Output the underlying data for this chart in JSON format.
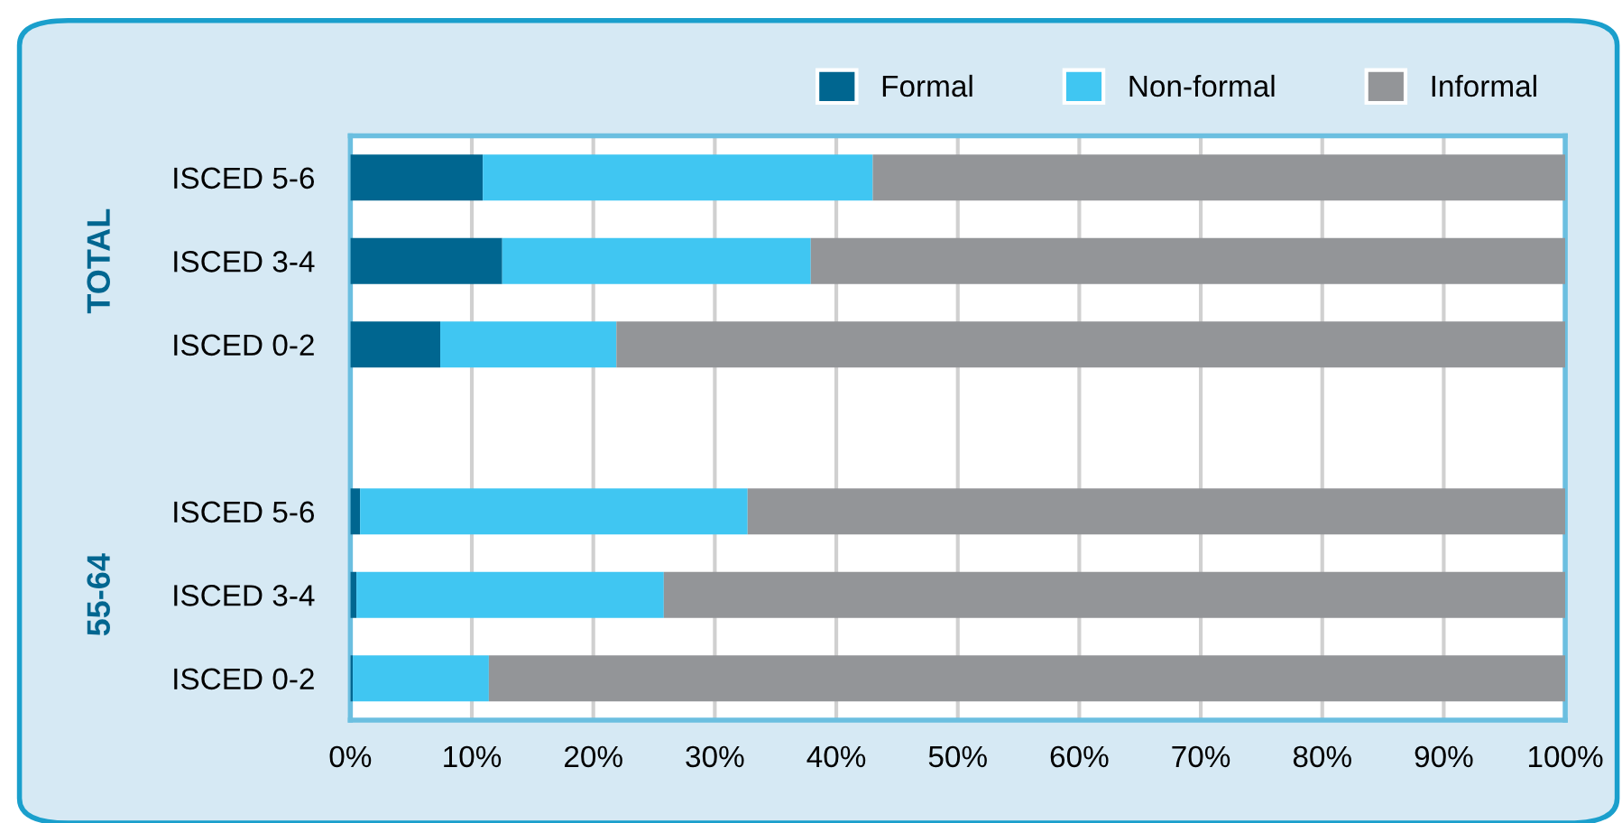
{
  "chart_data": {
    "type": "bar",
    "orientation": "horizontal",
    "stacked": true,
    "categories": [
      "ISCED 5-6",
      "ISCED 3-4",
      "ISCED 0-2",
      null,
      "ISCED 5-6",
      "ISCED 3-4",
      "ISCED 0-2"
    ],
    "series": [
      {
        "name": "Formal",
        "color": "#006690",
        "values": [
          10.9,
          12.5,
          7.4,
          null,
          0.8,
          0.5,
          0.2
        ]
      },
      {
        "name": "Non-formal",
        "color": "#40c6f2",
        "values": [
          32.1,
          25.4,
          14.5,
          null,
          31.9,
          25.3,
          11.2
        ]
      },
      {
        "name": "Informal",
        "color": "#939598",
        "values": [
          57.0,
          62.1,
          78.1,
          null,
          67.3,
          74.2,
          88.6
        ]
      }
    ],
    "annotations": [
      "TOTAL",
      "55-64"
    ],
    "xlim": [
      0,
      100
    ],
    "xticks": [
      {
        "value": 0,
        "label": "0%"
      },
      {
        "value": 10,
        "label": "10%"
      },
      {
        "value": 20,
        "label": "20%"
      },
      {
        "value": 30,
        "label": "30%"
      },
      {
        "value": 40,
        "label": "40%"
      },
      {
        "value": 50,
        "label": "50%"
      },
      {
        "value": 60,
        "label": "60%"
      },
      {
        "value": 70,
        "label": "70%"
      },
      {
        "value": 80,
        "label": "80%"
      },
      {
        "value": 90,
        "label": "90%"
      },
      {
        "value": 100,
        "label": "100%"
      }
    ],
    "grid": "x",
    "legend": "top right"
  }
}
